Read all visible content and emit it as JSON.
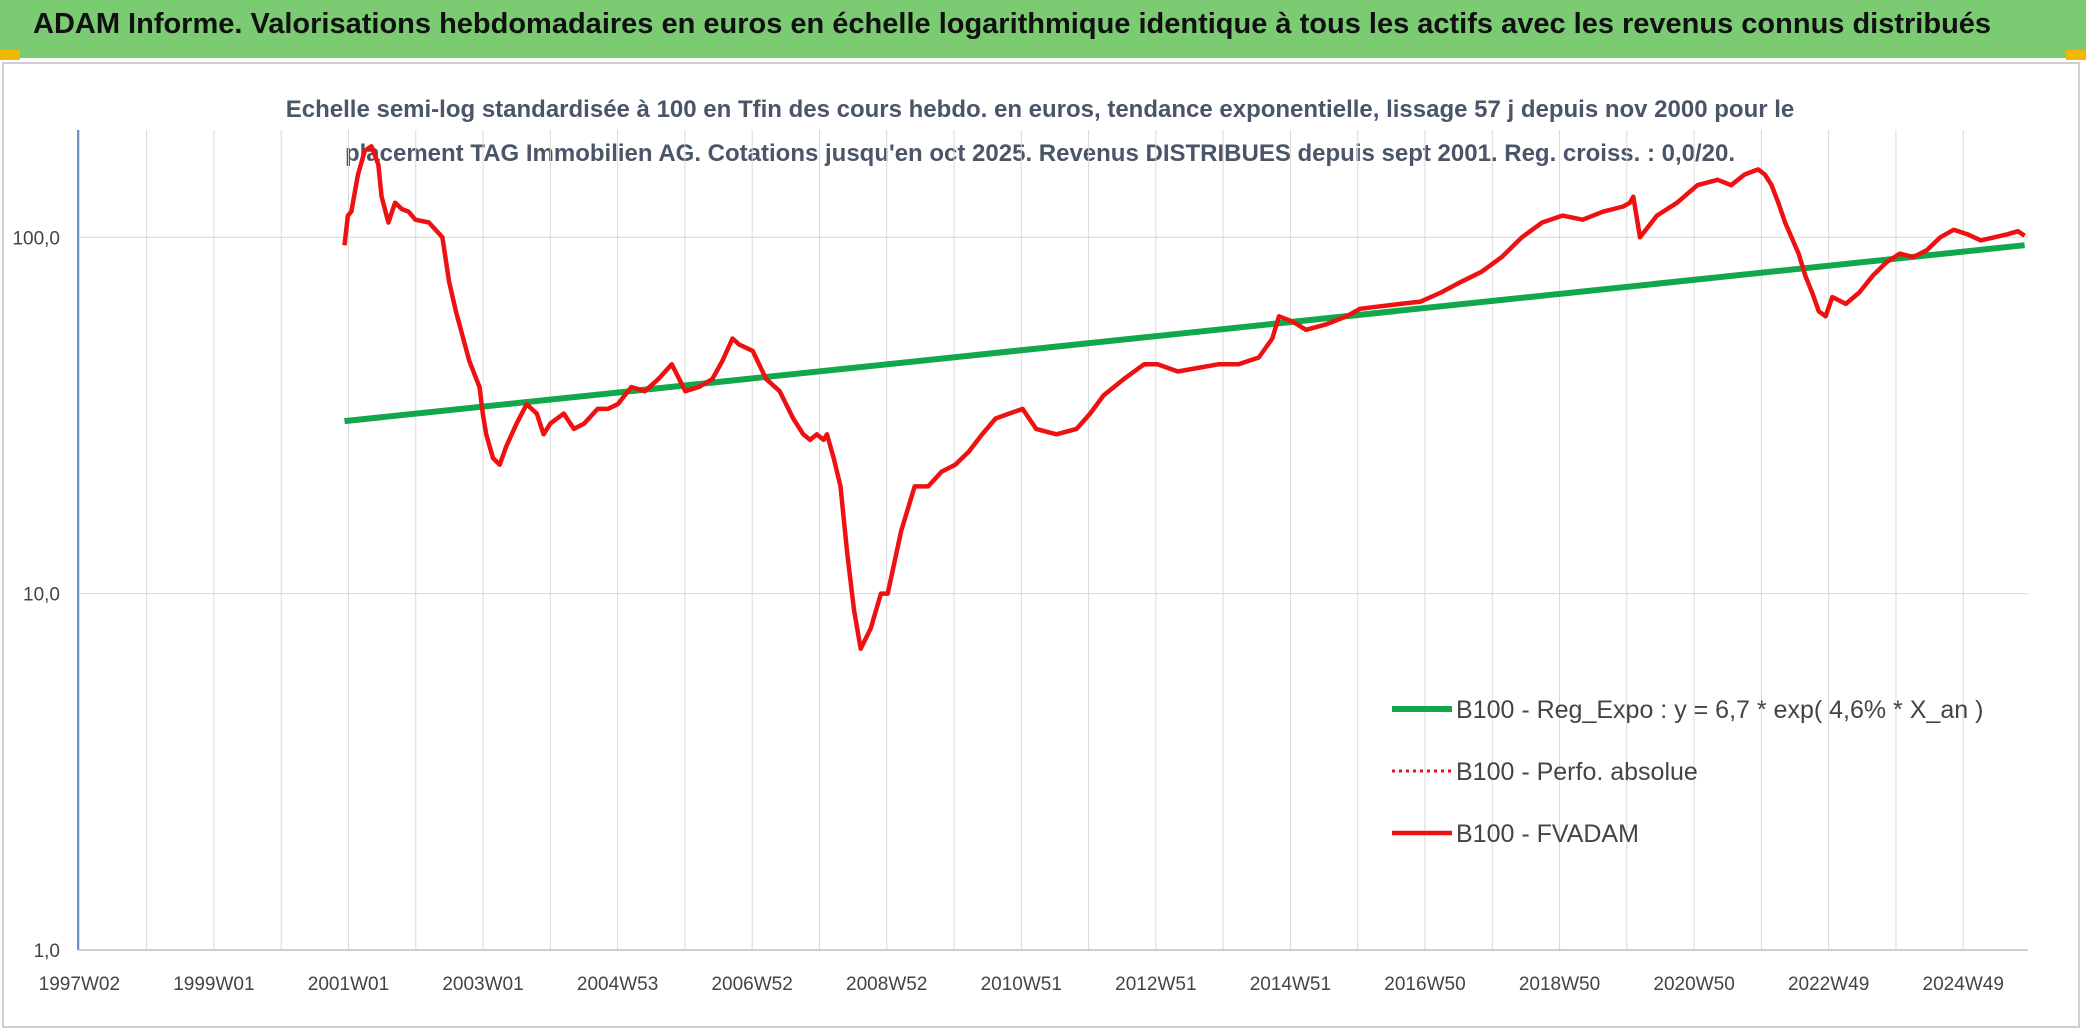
{
  "header": {
    "title": "ADAM Informe. Valorisations hebdomadaires en euros en échelle logarithmique identique à tous les actifs avec les revenus connus distribués"
  },
  "colors": {
    "banner": "#7bcb72",
    "accent": "#f2b705",
    "trend": "#10a84a",
    "fvadam": "#ee1111"
  },
  "chart_data": {
    "type": "line",
    "title": "Echelle semi-log standardisée à 100 en Tfin des cours hebdo. en euros, tendance exponentielle, lissage 57 j depuis nov 2000 pour le placement TAG Immobilien AG. Cotations jusqu'en oct 2025. Revenus DISTRIBUES depuis sept 2001. Reg. croiss. : 0,0/20.",
    "y_scale": "log",
    "ylim": [
      1,
      200
    ],
    "xlim": [
      1997.0,
      2025.9
    ],
    "y_ticks": [
      "1,0",
      "10,0",
      "100,0"
    ],
    "x_ticks": [
      "1997W02",
      "1999W01",
      "2001W01",
      "2003W01",
      "2004W53",
      "2006W52",
      "2008W52",
      "2010W51",
      "2012W51",
      "2014W51",
      "2016W50",
      "2018W50",
      "2020W50",
      "2022W49",
      "2024W49"
    ],
    "legend_position": "bottom-right",
    "series": [
      {
        "name": "B100 - Reg_Expo : y = 6,7 * exp( 4,6% *  X_an )",
        "style": "solid-green",
        "x": [
          2000.95,
          2025.85
        ],
        "y": [
          30.5,
          95
        ]
      },
      {
        "name": "B100 - Perfo. absolue",
        "style": "dotted-red",
        "x": [],
        "y": []
      },
      {
        "name": "B100 - FVADAM",
        "style": "solid-red",
        "x": [
          2000.95,
          2001.0,
          2001.05,
          2001.15,
          2001.25,
          2001.35,
          2001.45,
          2001.5,
          2001.6,
          2001.7,
          2001.8,
          2001.9,
          2002.0,
          2002.2,
          2002.4,
          2002.5,
          2002.6,
          2002.8,
          2002.95,
          2003.0,
          2003.05,
          2003.15,
          2003.25,
          2003.35,
          2003.5,
          2003.65,
          2003.8,
          2003.9,
          2004.0,
          2004.2,
          2004.35,
          2004.5,
          2004.7,
          2004.85,
          2005.0,
          2005.2,
          2005.4,
          2005.6,
          2005.8,
          2006.0,
          2006.2,
          2006.4,
          2006.55,
          2006.7,
          2006.8,
          2007.0,
          2007.2,
          2007.4,
          2007.6,
          2007.75,
          2007.85,
          2007.95,
          2008.05,
          2008.1,
          2008.2,
          2008.3,
          2008.4,
          2008.5,
          2008.6,
          2008.75,
          2008.9,
          2009.0,
          2009.2,
          2009.4,
          2009.6,
          2009.8,
          2010.0,
          2010.2,
          2010.4,
          2010.6,
          2010.8,
          2011.0,
          2011.2,
          2011.5,
          2011.8,
          2012.0,
          2012.2,
          2012.5,
          2012.8,
          2013.0,
          2013.3,
          2013.6,
          2013.9,
          2014.2,
          2014.5,
          2014.7,
          2014.8,
          2015.0,
          2015.2,
          2015.5,
          2015.8,
          2016.0,
          2016.3,
          2016.6,
          2016.9,
          2017.2,
          2017.5,
          2017.8,
          2018.1,
          2018.4,
          2018.7,
          2019.0,
          2019.3,
          2019.6,
          2019.9,
          2020.0,
          2020.05,
          2020.15,
          2020.4,
          2020.7,
          2021.0,
          2021.3,
          2021.5,
          2021.7,
          2021.9,
          2022.0,
          2022.1,
          2022.2,
          2022.3,
          2022.5,
          2022.6,
          2022.7,
          2022.8,
          2022.9,
          2023.0,
          2023.2,
          2023.4,
          2023.6,
          2023.8,
          2024.0,
          2024.2,
          2024.4,
          2024.6,
          2024.8,
          2025.0,
          2025.2,
          2025.4,
          2025.6,
          2025.75,
          2025.85
        ],
        "y": [
          95,
          115,
          118,
          150,
          175,
          180,
          160,
          130,
          110,
          125,
          120,
          118,
          112,
          110,
          100,
          75,
          62,
          45,
          38,
          32,
          28,
          24,
          23,
          26,
          30,
          34,
          32,
          28,
          30,
          32,
          29,
          30,
          33,
          33,
          34,
          38,
          37,
          40,
          44,
          37,
          38,
          40,
          45,
          52,
          50,
          48,
          40,
          37,
          31,
          28,
          27,
          28,
          27,
          28,
          24,
          20,
          13,
          9,
          7,
          8,
          10,
          10,
          15,
          20,
          20,
          22,
          23,
          25,
          28,
          31,
          32,
          33,
          29,
          28,
          29,
          32,
          36,
          40,
          44,
          44,
          42,
          43,
          44,
          44,
          46,
          52,
          60,
          58,
          55,
          57,
          60,
          63,
          64,
          65,
          66,
          70,
          75,
          80,
          88,
          100,
          110,
          115,
          112,
          118,
          122,
          125,
          130,
          100,
          115,
          125,
          140,
          145,
          140,
          150,
          155,
          150,
          140,
          125,
          110,
          90,
          78,
          70,
          62,
          60,
          68,
          65,
          70,
          78,
          85,
          90,
          88,
          92,
          100,
          105,
          102,
          98,
          100,
          102,
          104,
          101
        ]
      }
    ]
  }
}
